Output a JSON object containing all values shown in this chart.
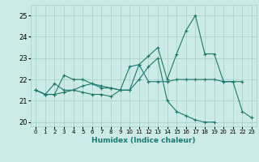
{
  "title": "",
  "xlabel": "Humidex (Indice chaleur)",
  "xlim": [
    -0.5,
    23.5
  ],
  "ylim": [
    19.8,
    25.5
  ],
  "yticks": [
    20,
    21,
    22,
    23,
    24,
    25
  ],
  "xticks": [
    0,
    1,
    2,
    3,
    4,
    5,
    6,
    7,
    8,
    9,
    10,
    11,
    12,
    13,
    14,
    15,
    16,
    17,
    18,
    19,
    20,
    21,
    22,
    23
  ],
  "bg_color": "#cceae6",
  "grid_color": "#aad4cf",
  "line_color": "#1a7a6e",
  "line1_y": [
    21.5,
    21.3,
    21.3,
    22.2,
    22.0,
    22.0,
    21.8,
    21.7,
    21.6,
    21.5,
    21.5,
    22.7,
    23.1,
    23.5,
    22.0,
    23.2,
    24.3,
    25.0,
    23.2,
    23.2,
    21.9,
    21.9,
    20.5,
    20.2
  ],
  "line2_y": [
    21.5,
    21.3,
    21.8,
    21.5,
    21.5,
    21.7,
    21.8,
    21.6,
    21.6,
    21.5,
    22.6,
    22.7,
    21.9,
    21.9,
    21.9,
    22.0,
    22.0,
    22.0,
    22.0,
    22.0,
    21.9,
    21.9,
    21.9,
    null
  ],
  "line3_y": [
    21.5,
    21.3,
    21.3,
    21.4,
    21.5,
    21.4,
    21.3,
    21.3,
    21.2,
    21.5,
    21.5,
    22.0,
    22.6,
    23.0,
    21.0,
    20.5,
    20.3,
    20.1,
    20.0,
    20.0,
    null,
    null,
    null,
    null
  ]
}
